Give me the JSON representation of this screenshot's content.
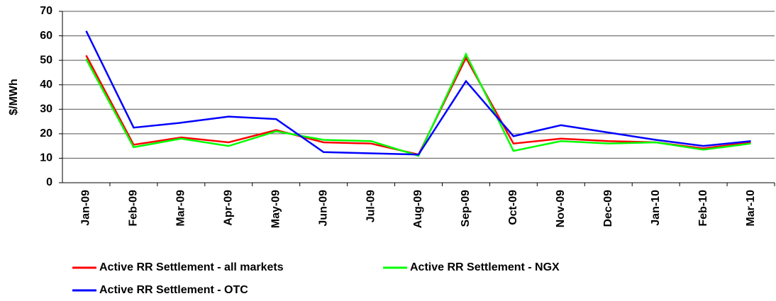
{
  "chart_data": {
    "type": "line",
    "y_label": "$/MWh",
    "categories": [
      "Jan-09",
      "Feb-09",
      "Mar-09",
      "Apr-09",
      "May-09",
      "Jun-09",
      "Jul-09",
      "Aug-09",
      "Sep-09",
      "Oct-09",
      "Nov-09",
      "Dec-09",
      "Jan-10",
      "Feb-10",
      "Mar-10"
    ],
    "series": [
      {
        "name": "Active RR Settlement - all markets",
        "color": "#ff0000",
        "values": [
          52,
          15.5,
          18.5,
          16.5,
          21.5,
          16.5,
          16,
          11.5,
          51,
          16,
          18,
          17,
          16.5,
          14,
          16.5
        ]
      },
      {
        "name": "Active RR Settlement - NGX",
        "color": "#00ff00",
        "values": [
          50.5,
          14.5,
          18,
          15,
          21,
          17.5,
          17,
          11,
          52.5,
          13,
          17,
          16,
          16.5,
          13.5,
          16
        ]
      },
      {
        "name": "Active RR Settlement - OTC",
        "color": "#0000ff",
        "values": [
          62,
          22.5,
          24.5,
          27,
          26,
          12.5,
          12,
          11.5,
          41.5,
          19,
          23.5,
          20.5,
          17.5,
          15,
          17
        ]
      }
    ],
    "ylim": [
      0,
      70
    ],
    "yticks": [
      0,
      10,
      20,
      30,
      40,
      50,
      60,
      70
    ],
    "grid": true
  }
}
